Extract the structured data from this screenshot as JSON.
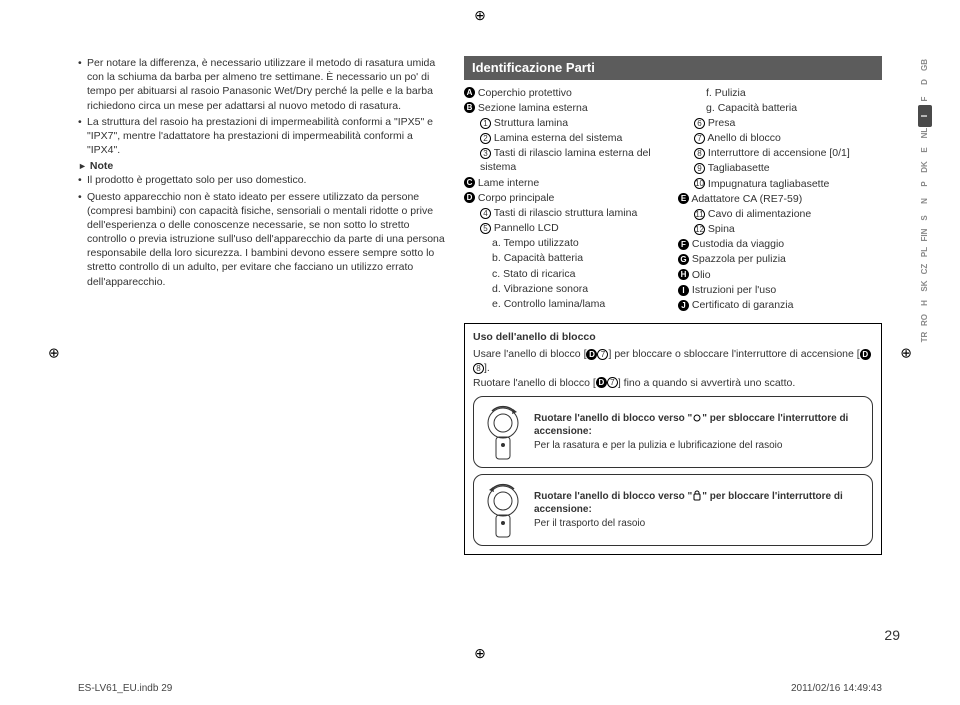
{
  "left_column": {
    "bullets_top": [
      "Per notare la differenza, è necessario utilizzare il metodo di rasatura umida con la schiuma da barba per almeno tre settimane. È necessario un po' di tempo per abituarsi al rasoio Panasonic Wet/Dry perché la pelle e la barba richiedono circa un mese per adattarsi al nuovo metodo di rasatura.",
      "La struttura del rasoio ha prestazioni di impermeabilità conformi a \"IPX5\" e \"IPX7\", mentre l'adattatore ha prestazioni di impermeabilità conformi a \"IPX4\"."
    ],
    "note_label": "Note",
    "bullets_note": [
      "Il prodotto è progettato solo per uso domestico.",
      "Questo apparecchio non è stato ideato per essere utilizzato da persone (compresi bambini) con capacità fisiche, sensoriali o mentali ridotte o prive dell'esperienza o delle conoscenze necessarie, se non sotto lo stretto controllo o previa istruzione sull'uso dell'apparecchio da parte di una persona responsabile della loro sicurezza. I bambini devono essere sempre sotto lo stretto controllo di un adulto, per evitare che facciano un utilizzo errato dell'apparecchio."
    ]
  },
  "parts": {
    "heading": "Identificazione Parti",
    "col1": [
      {
        "badge": "A",
        "type": "letter",
        "text": "Coperchio protettivo"
      },
      {
        "badge": "B",
        "type": "letter",
        "text": "Sezione lamina esterna"
      },
      {
        "badge": "1",
        "type": "num",
        "text": "Struttura lamina",
        "indent": 1
      },
      {
        "badge": "2",
        "type": "num",
        "text": "Lamina esterna del sistema",
        "indent": 1
      },
      {
        "badge": "3",
        "type": "num",
        "text": "Tasti di rilascio lamina esterna del sistema",
        "indent": 1
      },
      {
        "badge": "C",
        "type": "letter",
        "text": "Lame interne"
      },
      {
        "badge": "D",
        "type": "letter",
        "text": "Corpo principale"
      },
      {
        "badge": "4",
        "type": "num",
        "text": "Tasti di rilascio struttura lamina",
        "indent": 1
      },
      {
        "badge": "5",
        "type": "num",
        "text": "Pannello LCD",
        "indent": 1
      },
      {
        "badge": "a.",
        "type": "plain",
        "text": "Tempo utilizzato",
        "indent": 2
      },
      {
        "badge": "b.",
        "type": "plain",
        "text": "Capacità batteria",
        "indent": 2
      },
      {
        "badge": "c.",
        "type": "plain",
        "text": "Stato di ricarica",
        "indent": 2
      },
      {
        "badge": "d.",
        "type": "plain",
        "text": "Vibrazione sonora",
        "indent": 2
      },
      {
        "badge": "e.",
        "type": "plain",
        "text": "Controllo lamina/lama",
        "indent": 2
      }
    ],
    "col2": [
      {
        "badge": "f.",
        "type": "plain",
        "text": "Pulizia",
        "indent": 2
      },
      {
        "badge": "g.",
        "type": "plain",
        "text": "Capacità batteria",
        "indent": 2
      },
      {
        "badge": "6",
        "type": "num",
        "text": "Presa",
        "indent": 1
      },
      {
        "badge": "7",
        "type": "num",
        "text": "Anello di blocco",
        "indent": 1
      },
      {
        "badge": "8",
        "type": "num",
        "text": "Interruttore di accensione [0/1]",
        "indent": 1
      },
      {
        "badge": "9",
        "type": "num",
        "text": "Tagliabasette",
        "indent": 1
      },
      {
        "badge": "10",
        "type": "num",
        "text": "Impugnatura tagliabasette",
        "indent": 1
      },
      {
        "badge": "E",
        "type": "letter",
        "text": "Adattatore CA (RE7-59)"
      },
      {
        "badge": "11",
        "type": "num",
        "text": "Cavo di alimentazione",
        "indent": 1
      },
      {
        "badge": "12",
        "type": "num",
        "text": "Spina",
        "indent": 1
      },
      {
        "badge": "F",
        "type": "letter",
        "text": "Custodia da viaggio"
      },
      {
        "badge": "G",
        "type": "letter",
        "text": "Spazzola per pulizia"
      },
      {
        "badge": "H",
        "type": "letter",
        "text": "Olio"
      },
      {
        "badge": "I",
        "type": "letter",
        "text": "Istruzioni per l'uso"
      },
      {
        "badge": "J",
        "type": "letter",
        "text": "Certificato di garanzia"
      }
    ]
  },
  "uso": {
    "title": "Uso dell'anello di blocco",
    "line1a": "Usare l'anello di blocco [",
    "line1b": "] per bloccare o sbloccare l'interruttore di accensione [",
    "line1c": "].",
    "line2a": "Ruotare l'anello di blocco [",
    "line2b": "] fino a quando si avvertirà uno scatto.",
    "unlock_bold": "Ruotare l'anello di blocco verso \" \" per sbloccare l'interruttore di accensione:",
    "unlock_text": "Per la rasatura e per la pulizia e lubrificazione del rasoio",
    "lock_bold": "Ruotare l'anello di blocco verso \" \" per bloccare l'interruttore di accensione:",
    "lock_text": "Per il trasporto del rasoio"
  },
  "lang_tabs": [
    "GB",
    "D",
    "F",
    "I",
    "NL",
    "E",
    "DK",
    "P",
    "N",
    "S",
    "FIN",
    "PL",
    "CZ",
    "SK",
    "H",
    "RO",
    "TR"
  ],
  "active_lang": "I",
  "page_number": "29",
  "footer_left": "ES-LV61_EU.indb   29",
  "footer_right": "2011/02/16   14:49:43"
}
